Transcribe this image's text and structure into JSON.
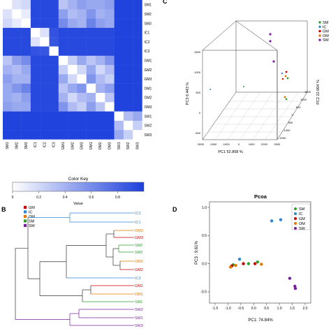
{
  "panel_labels": {
    "c": "C",
    "b": "B",
    "d": "D"
  },
  "colors": {
    "GM": "#cc0000",
    "IC": "#2f86d6",
    "OM": "#e07800",
    "SM": "#2ea02e",
    "SW": "#7a1fa2",
    "heat_low": "#ffffff",
    "heat_high": "#1c3fdc"
  },
  "chart_data": [
    {
      "type": "heatmap",
      "labels": [
        "SM1",
        "SM2",
        "SM3",
        "IC1",
        "IC2",
        "IC3",
        "GM1",
        "GM2",
        "GM3",
        "OM1",
        "OM2",
        "OM3",
        "SW1",
        "SW2",
        "SW3"
      ],
      "values": [
        [
          1.0,
          0.85,
          0.8,
          0.05,
          0.05,
          0.05,
          0.7,
          0.6,
          0.5,
          0.55,
          0.55,
          0.5,
          0.02,
          0.02,
          0.02
        ],
        [
          0.85,
          1.0,
          0.9,
          0.05,
          0.05,
          0.05,
          0.5,
          0.65,
          0.6,
          0.45,
          0.6,
          0.55,
          0.02,
          0.02,
          0.02
        ],
        [
          0.8,
          0.9,
          1.0,
          0.05,
          0.05,
          0.05,
          0.4,
          0.55,
          0.6,
          0.35,
          0.5,
          0.55,
          0.02,
          0.02,
          0.02
        ],
        [
          0.05,
          0.05,
          0.05,
          1.0,
          0.85,
          0.1,
          0.05,
          0.05,
          0.05,
          0.05,
          0.05,
          0.05,
          0.02,
          0.02,
          0.02
        ],
        [
          0.05,
          0.05,
          0.05,
          0.85,
          1.0,
          0.12,
          0.05,
          0.05,
          0.05,
          0.05,
          0.05,
          0.05,
          0.02,
          0.02,
          0.02
        ],
        [
          0.05,
          0.05,
          0.05,
          0.1,
          0.12,
          1.0,
          0.05,
          0.05,
          0.05,
          0.05,
          0.05,
          0.05,
          0.02,
          0.02,
          0.02
        ],
        [
          0.7,
          0.5,
          0.4,
          0.05,
          0.05,
          0.05,
          1.0,
          0.75,
          0.55,
          0.7,
          0.6,
          0.45,
          0.02,
          0.02,
          0.02
        ],
        [
          0.6,
          0.65,
          0.55,
          0.05,
          0.05,
          0.05,
          0.75,
          1.0,
          0.8,
          0.55,
          0.8,
          0.65,
          0.02,
          0.02,
          0.02
        ],
        [
          0.5,
          0.6,
          0.6,
          0.05,
          0.05,
          0.05,
          0.55,
          0.8,
          1.0,
          0.45,
          0.65,
          0.75,
          0.02,
          0.02,
          0.02
        ],
        [
          0.55,
          0.45,
          0.35,
          0.05,
          0.05,
          0.05,
          0.7,
          0.55,
          0.45,
          1.0,
          0.6,
          0.5,
          0.02,
          0.02,
          0.02
        ],
        [
          0.55,
          0.6,
          0.5,
          0.05,
          0.05,
          0.05,
          0.6,
          0.8,
          0.65,
          0.6,
          1.0,
          0.7,
          0.02,
          0.02,
          0.02
        ],
        [
          0.5,
          0.55,
          0.55,
          0.05,
          0.05,
          0.05,
          0.45,
          0.65,
          0.75,
          0.5,
          0.7,
          1.0,
          0.02,
          0.02,
          0.02
        ],
        [
          0.02,
          0.02,
          0.02,
          0.02,
          0.02,
          0.02,
          0.02,
          0.02,
          0.02,
          0.02,
          0.02,
          0.02,
          1.0,
          0.65,
          0.55
        ],
        [
          0.02,
          0.02,
          0.02,
          0.02,
          0.02,
          0.02,
          0.02,
          0.02,
          0.02,
          0.02,
          0.02,
          0.02,
          0.65,
          1.0,
          0.75
        ],
        [
          0.02,
          0.02,
          0.02,
          0.02,
          0.02,
          0.02,
          0.02,
          0.02,
          0.02,
          0.02,
          0.02,
          0.02,
          0.55,
          0.75,
          1.0
        ]
      ],
      "color_key": {
        "title": "Color Key",
        "xlabel": "Value",
        "ticks": [
          "0",
          "0.2",
          "0.4",
          "0.6",
          "0.8"
        ],
        "range": [
          0,
          1
        ]
      }
    },
    {
      "type": "scatter",
      "subtype": "3d-pca",
      "xlabel": "PC1  52.808 %",
      "ylabel": "PC3  6.443 %",
      "zlabel": "PC2  22.004 %",
      "x_ticks": [
        "-3000",
        "-2000",
        "-1000",
        "0",
        "1000",
        "2000",
        "3000"
      ],
      "y_ticks": [
        "-500",
        "0",
        "500",
        "1000",
        "1500"
      ],
      "z_ticks": [
        "-1500",
        "-1000",
        "-500",
        "0",
        "500",
        "1000",
        "1500"
      ],
      "legend": [
        "SM",
        "IC",
        "GM",
        "OM",
        "SW"
      ],
      "legend_placement": "top-right"
    },
    {
      "type": "dendrogram",
      "legend": [
        "GM",
        "IC",
        "OM",
        "SM",
        "SW"
      ],
      "legend_placement": "top-left",
      "leaves": [
        {
          "label": "IC2",
          "group": "IC"
        },
        {
          "label": "IC1",
          "group": "IC"
        },
        {
          "label": "OM3",
          "group": "OM"
        },
        {
          "label": "GM3",
          "group": "GM"
        },
        {
          "label": "SM2",
          "group": "SM"
        },
        {
          "label": "SM3",
          "group": "SM"
        },
        {
          "label": "OM2",
          "group": "OM"
        },
        {
          "label": "GM2",
          "group": "GM"
        },
        {
          "label": "IC3",
          "group": "IC"
        },
        {
          "label": "GM1",
          "group": "GM"
        },
        {
          "label": "OM1",
          "group": "OM"
        },
        {
          "label": "SM1",
          "group": "SM"
        },
        {
          "label": "SW2",
          "group": "SW"
        },
        {
          "label": "SW1",
          "group": "SW"
        },
        {
          "label": "SW3",
          "group": "SW"
        }
      ]
    },
    {
      "type": "scatter",
      "title": "Pcoa",
      "xlabel": "PC1: 74.84%",
      "ylabel": "PC3 : 9.61%",
      "xlim": [
        -1.5,
        2.0
      ],
      "ylim": [
        -0.6,
        1.0
      ],
      "x_ticks": [
        -1.5,
        -1.0,
        -0.5,
        0.0,
        0.5,
        1.0,
        1.5,
        2.0
      ],
      "y_ticks": [
        -0.5,
        0.0,
        0.5,
        1.0
      ],
      "legend": [
        "SM",
        "IC",
        "GM",
        "OM",
        "SW"
      ],
      "legend_placement": "top-right",
      "points": [
        {
          "group": "IC",
          "x": 0.7,
          "y": 0.76
        },
        {
          "group": "IC",
          "x": 1.05,
          "y": 0.78
        },
        {
          "group": "IC",
          "x": -0.55,
          "y": 0.08
        },
        {
          "group": "SM",
          "x": -0.8,
          "y": -0.02
        },
        {
          "group": "SM",
          "x": -0.2,
          "y": 0.0
        },
        {
          "group": "SM",
          "x": 0.15,
          "y": 0.03
        },
        {
          "group": "GM",
          "x": -0.85,
          "y": -0.04
        },
        {
          "group": "GM",
          "x": -0.4,
          "y": 0.0
        },
        {
          "group": "GM",
          "x": 0.05,
          "y": 0.0
        },
        {
          "group": "OM",
          "x": -0.9,
          "y": -0.06
        },
        {
          "group": "OM",
          "x": -0.7,
          "y": -0.03
        },
        {
          "group": "OM",
          "x": 0.3,
          "y": -0.01
        },
        {
          "group": "SW",
          "x": 1.4,
          "y": -0.26
        },
        {
          "group": "SW",
          "x": 1.6,
          "y": -0.4
        },
        {
          "group": "SW",
          "x": 1.62,
          "y": -0.44
        }
      ]
    }
  ]
}
